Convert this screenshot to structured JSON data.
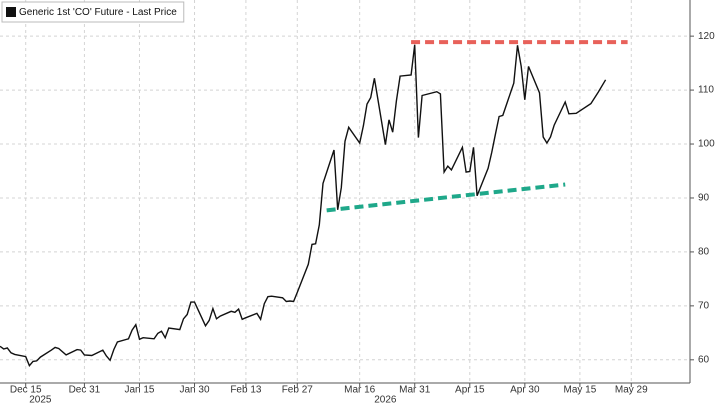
{
  "chart_data": {
    "type": "line",
    "x": [
      "2025-12-08",
      "2025-12-09",
      "2025-12-10",
      "2025-12-11",
      "2025-12-12",
      "2025-12-15",
      "2025-12-16",
      "2025-12-17",
      "2025-12-18",
      "2025-12-19",
      "2025-12-22",
      "2025-12-23",
      "2025-12-24",
      "2025-12-26",
      "2025-12-29",
      "2025-12-30",
      "2025-12-31",
      "2026-01-02",
      "2026-01-05",
      "2026-01-06",
      "2026-01-07",
      "2026-01-08",
      "2026-01-09",
      "2026-01-12",
      "2026-01-13",
      "2026-01-14",
      "2026-01-15",
      "2026-01-16",
      "2026-01-19",
      "2026-01-20",
      "2026-01-21",
      "2026-01-22",
      "2026-01-23",
      "2026-01-26",
      "2026-01-27",
      "2026-01-28",
      "2026-01-29",
      "2026-01-30",
      "2026-02-02",
      "2026-02-03",
      "2026-02-04",
      "2026-02-05",
      "2026-02-06",
      "2026-02-09",
      "2026-02-10",
      "2026-02-11",
      "2026-02-12",
      "2026-02-13",
      "2026-02-16",
      "2026-02-17",
      "2026-02-18",
      "2026-02-19",
      "2026-02-20",
      "2026-02-23",
      "2026-02-24",
      "2026-02-25",
      "2026-02-26",
      "2026-02-27",
      "2026-03-02",
      "2026-03-03",
      "2026-03-04",
      "2026-03-05",
      "2026-03-06",
      "2026-03-09",
      "2026-03-10",
      "2026-03-11",
      "2026-03-12",
      "2026-03-13",
      "2026-03-16",
      "2026-03-17",
      "2026-03-18",
      "2026-03-19",
      "2026-03-20",
      "2026-03-23",
      "2026-03-24",
      "2026-03-25",
      "2026-03-26",
      "2026-03-27",
      "2026-03-30",
      "2026-03-31",
      "2026-04-01",
      "2026-04-02",
      "2026-04-06",
      "2026-04-07",
      "2026-04-08",
      "2026-04-09",
      "2026-04-10",
      "2026-04-13",
      "2026-04-14",
      "2026-04-15",
      "2026-04-16",
      "2026-04-17",
      "2026-04-20",
      "2026-04-21",
      "2026-04-22",
      "2026-04-23",
      "2026-04-24",
      "2026-04-27",
      "2026-04-28",
      "2026-04-29",
      "2026-04-30",
      "2026-05-01",
      "2026-05-04",
      "2026-05-05",
      "2026-05-06",
      "2026-05-07",
      "2026-05-08",
      "2026-05-11",
      "2026-05-12",
      "2026-05-14",
      "2026-05-18",
      "2026-05-20",
      "2026-05-22"
    ],
    "series": [
      {
        "name": "Generic 1st 'CO' Future - Last Price",
        "color": "#111111",
        "values": [
          62.5,
          62.0,
          62.2,
          61.3,
          61.0,
          60.6,
          58.9,
          59.7,
          59.8,
          60.5,
          61.8,
          62.3,
          62.1,
          60.9,
          61.9,
          61.8,
          60.9,
          60.8,
          61.8,
          60.7,
          59.9,
          61.9,
          63.3,
          63.9,
          65.5,
          66.5,
          63.8,
          64.1,
          63.9,
          64.9,
          65.3,
          64.1,
          65.9,
          65.6,
          67.6,
          68.4,
          70.7,
          70.7,
          66.3,
          67.3,
          69.5,
          67.6,
          68.1,
          69.0,
          68.8,
          69.4,
          67.5,
          67.8,
          68.6,
          67.5,
          70.4,
          71.7,
          71.8,
          71.5,
          70.8,
          70.9,
          70.8,
          72.5,
          77.7,
          81.4,
          81.5,
          85.0,
          92.7,
          98.9,
          87.8,
          91.9,
          100.5,
          103.1,
          100.2,
          103.4,
          107.4,
          108.6,
          112.2,
          99.9,
          104.5,
          102.2,
          108.0,
          112.6,
          112.8,
          118.4,
          101.2,
          109.0,
          109.7,
          109.3,
          94.8,
          95.9,
          95.2,
          99.4,
          94.8,
          94.9,
          99.4,
          90.4,
          95.5,
          98.5,
          101.9,
          105.1,
          105.3,
          111.3,
          118.3,
          114.4,
          108.2,
          114.4,
          109.5,
          101.3,
          100.2,
          101.3,
          103.5,
          107.8,
          105.6,
          105.7,
          107.5,
          109.6,
          111.9
        ]
      }
    ],
    "trend_lines": [
      {
        "color": "#e8615a",
        "x": [
          "2026-03-30",
          "2026-05-28"
        ],
        "y": [
          118.9,
          118.9
        ]
      },
      {
        "color": "#1fa88a",
        "x": [
          "2026-03-07",
          "2026-05-11"
        ],
        "y": [
          87.7,
          92.5
        ]
      }
    ],
    "xlim": [
      "2025-12-08",
      "2026-06-14"
    ],
    "xticks": [
      {
        "value": "2025-12-15",
        "label": "Dec 15"
      },
      {
        "value": "2025-12-31",
        "label": "Dec 31"
      },
      {
        "value": "2026-01-15",
        "label": "Jan 15"
      },
      {
        "value": "2026-01-30",
        "label": "Jan 30"
      },
      {
        "value": "2026-02-13",
        "label": "Feb 13"
      },
      {
        "value": "2026-02-27",
        "label": "Feb 27"
      },
      {
        "value": "2026-03-16",
        "label": "Mar 16"
      },
      {
        "value": "2026-03-31",
        "label": "Mar 31"
      },
      {
        "value": "2026-04-15",
        "label": "Apr 15"
      },
      {
        "value": "2026-04-30",
        "label": "Apr 30"
      },
      {
        "value": "2026-05-15",
        "label": "May 15"
      },
      {
        "value": "2026-05-29",
        "label": "May 29"
      }
    ],
    "year_labels": [
      {
        "value": "2025-12-19",
        "label": "2025"
      },
      {
        "value": "2026-03-23",
        "label": "2026"
      }
    ],
    "ylim": [
      55.7,
      126.7
    ],
    "yticks": [
      60,
      70,
      80,
      90,
      100,
      110,
      120
    ],
    "grid": true,
    "legend": "upper left"
  }
}
